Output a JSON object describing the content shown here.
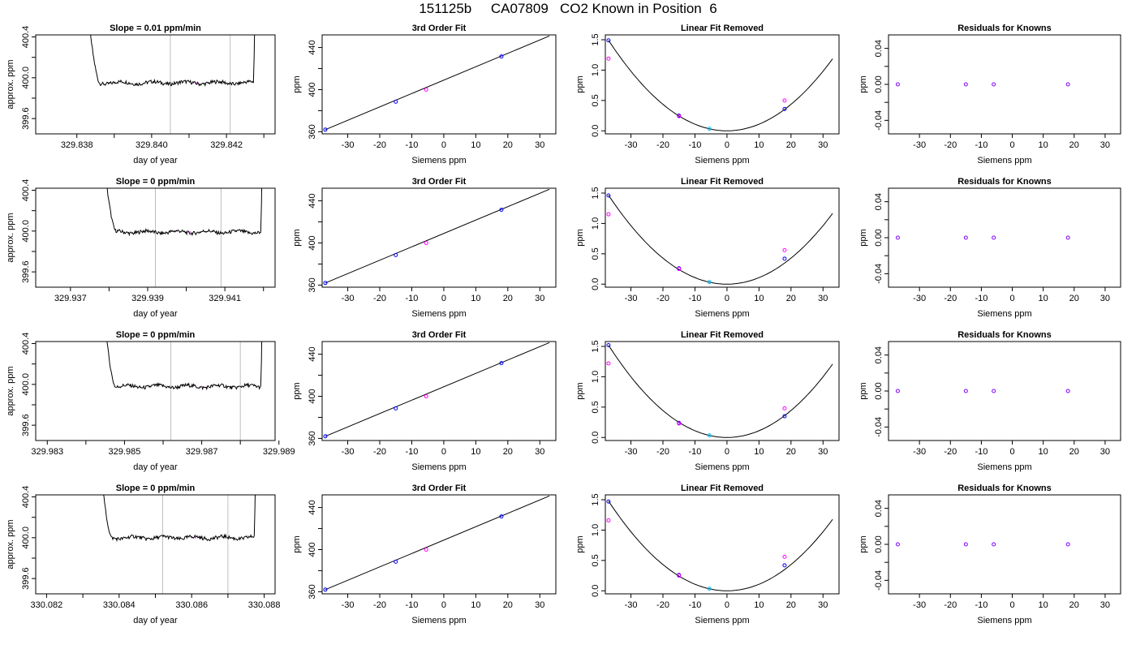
{
  "page_title": "151125b     CA07809   CO2 Known in Position  6",
  "colors": {
    "trace": "#000000",
    "reference_line": "#bebebe",
    "fit_line": "#000000",
    "known_point": "#0000ff",
    "alt_point": "#ff00ff",
    "highlight_point": "#00bfff",
    "residual_point": "#8000ff"
  },
  "chart_data": [
    {
      "type": "line",
      "title": "Slope =  0.01  ppm/min",
      "xlabel": "day of year",
      "ylabel": "approx. ppm",
      "xlim": [
        329.8369,
        329.8433
      ],
      "ylim": [
        399.45,
        400.42
      ],
      "xticks": [
        329.838,
        329.839,
        329.84,
        329.841,
        329.842,
        329.843
      ],
      "xtick_labels": [
        "329.838",
        "",
        "329.840",
        "",
        "329.842",
        ""
      ],
      "yticks": [
        399.6,
        399.8,
        400.0,
        400.2,
        400.4
      ],
      "ytick_labels": [
        "399.6",
        "",
        "400.0",
        "",
        "400.4"
      ],
      "vlines": [
        329.8405,
        329.8421
      ],
      "trace": {
        "x_start": 329.8381,
        "x_end": 329.8428,
        "baseline": 399.95,
        "pink_marker_x": 329.8412
      }
    },
    {
      "type": "scatter",
      "title": "3rd Order Fit",
      "xlabel": "Siemens ppm",
      "ylabel": "ppm",
      "xlim": [
        -38,
        35
      ],
      "ylim": [
        358,
        452
      ],
      "xticks": [
        -30,
        -20,
        -10,
        0,
        10,
        20,
        30
      ],
      "xtick_labels": [
        "-30",
        "-20",
        "-10",
        "0",
        "10",
        "20",
        "30"
      ],
      "yticks": [
        360,
        380,
        400,
        420,
        440
      ],
      "ytick_labels": [
        "360",
        "",
        "400",
        "",
        "440"
      ],
      "fit_line": {
        "x": [
          -37,
          33
        ],
        "y": [
          362,
          451
        ]
      },
      "points": [
        {
          "x": -37,
          "y": 362,
          "role": "known"
        },
        {
          "x": -15,
          "y": 388.5,
          "role": "known"
        },
        {
          "x": -5.5,
          "y": 400,
          "role": "alt"
        },
        {
          "x": 18,
          "y": 431.5,
          "role": "known"
        }
      ]
    },
    {
      "type": "scatter",
      "title": "Linear Fit Removed",
      "xlabel": "Siemens ppm",
      "ylabel": "ppm",
      "xlim": [
        -38,
        35
      ],
      "ylim": [
        -0.05,
        1.58
      ],
      "xticks": [
        -30,
        -20,
        -10,
        0,
        10,
        20,
        30
      ],
      "xtick_labels": [
        "-30",
        "-20",
        "-10",
        "0",
        "10",
        "20",
        "30"
      ],
      "yticks": [
        0,
        0.5,
        1.0,
        1.5
      ],
      "ytick_labels": [
        "0.0",
        "0.5",
        "1.0",
        "1.5"
      ],
      "curve": {
        "x_min": -37,
        "x_max": 33,
        "a": 0.00109
      },
      "points": [
        {
          "x": -37,
          "y": 1.49,
          "role": "known"
        },
        {
          "x": -37,
          "y": 1.19,
          "role": "alt"
        },
        {
          "x": -15,
          "y": 0.25,
          "role": "known"
        },
        {
          "x": -15,
          "y": 0.24,
          "role": "alt"
        },
        {
          "x": -5.5,
          "y": 0.035,
          "role": "highlight"
        },
        {
          "x": 18,
          "y": 0.36,
          "role": "known"
        },
        {
          "x": 18,
          "y": 0.5,
          "role": "alt"
        }
      ]
    },
    {
      "type": "scatter",
      "title": "Residuals for Knowns",
      "xlabel": "Siemens ppm",
      "ylabel": "ppm",
      "xlim": [
        -40,
        35
      ],
      "ylim": [
        -0.055,
        0.055
      ],
      "xticks": [
        -30,
        -20,
        -10,
        0,
        10,
        20,
        30
      ],
      "xtick_labels": [
        "-30",
        "-20",
        "-10",
        "0",
        "10",
        "20",
        "30"
      ],
      "yticks": [
        -0.04,
        -0.02,
        0,
        0.02,
        0.04
      ],
      "ytick_labels": [
        "-0.04",
        "",
        "0.00",
        "",
        "0.04"
      ],
      "points": [
        {
          "x": -37,
          "y": 0,
          "role": "residual"
        },
        {
          "x": -15,
          "y": 0,
          "role": "residual"
        },
        {
          "x": -6,
          "y": 0,
          "role": "residual"
        },
        {
          "x": 18,
          "y": 0,
          "role": "residual"
        }
      ]
    },
    {
      "type": "line",
      "title": "Slope =  0  ppm/min",
      "xlabel": "day of year",
      "ylabel": "approx. ppm",
      "xlim": [
        329.9361,
        329.9423
      ],
      "ylim": [
        399.45,
        400.42
      ],
      "xticks": [
        329.937,
        329.938,
        329.939,
        329.94,
        329.941,
        329.942
      ],
      "xtick_labels": [
        "329.937",
        "",
        "329.939",
        "",
        "329.941",
        ""
      ],
      "yticks": [
        399.6,
        399.8,
        400.0,
        400.2,
        400.4
      ],
      "ytick_labels": [
        "399.6",
        "",
        "400.0",
        "",
        "400.4"
      ],
      "vlines": [
        329.9392,
        329.9409
      ],
      "trace": {
        "x_start": 329.9377,
        "x_end": 329.942,
        "baseline": 399.99,
        "pink_marker_x": 329.9401
      }
    },
    {
      "type": "scatter",
      "title": "3rd Order Fit",
      "xlabel": "Siemens ppm",
      "ylabel": "ppm",
      "xlim": [
        -38,
        35
      ],
      "ylim": [
        358,
        452
      ],
      "xticks": [
        -30,
        -20,
        -10,
        0,
        10,
        20,
        30
      ],
      "xtick_labels": [
        "-30",
        "-20",
        "-10",
        "0",
        "10",
        "20",
        "30"
      ],
      "yticks": [
        360,
        380,
        400,
        420,
        440
      ],
      "ytick_labels": [
        "360",
        "",
        "400",
        "",
        "440"
      ],
      "fit_line": {
        "x": [
          -37,
          33
        ],
        "y": [
          362,
          451
        ]
      },
      "points": [
        {
          "x": -37,
          "y": 362,
          "role": "known"
        },
        {
          "x": -15,
          "y": 388.5,
          "role": "known"
        },
        {
          "x": -5.5,
          "y": 400,
          "role": "alt"
        },
        {
          "x": 18,
          "y": 431.5,
          "role": "known"
        }
      ]
    },
    {
      "type": "scatter",
      "title": "Linear Fit Removed",
      "xlabel": "Siemens ppm",
      "ylabel": "ppm",
      "xlim": [
        -38,
        35
      ],
      "ylim": [
        -0.05,
        1.58
      ],
      "xticks": [
        -30,
        -20,
        -10,
        0,
        10,
        20,
        30
      ],
      "xtick_labels": [
        "-30",
        "-20",
        "-10",
        "0",
        "10",
        "20",
        "30"
      ],
      "yticks": [
        0,
        0.5,
        1.0,
        1.5
      ],
      "ytick_labels": [
        "0.0",
        "0.5",
        "1.0",
        "1.5"
      ],
      "curve": {
        "x_min": -37,
        "x_max": 33,
        "a": 0.00107
      },
      "points": [
        {
          "x": -37,
          "y": 1.46,
          "role": "known"
        },
        {
          "x": -37,
          "y": 1.15,
          "role": "alt"
        },
        {
          "x": -15,
          "y": 0.26,
          "role": "known"
        },
        {
          "x": -15,
          "y": 0.25,
          "role": "alt"
        },
        {
          "x": -5.5,
          "y": 0.035,
          "role": "highlight"
        },
        {
          "x": 18,
          "y": 0.42,
          "role": "known"
        },
        {
          "x": 18,
          "y": 0.56,
          "role": "alt"
        }
      ]
    },
    {
      "type": "scatter",
      "title": "Residuals for Knowns",
      "xlabel": "Siemens ppm",
      "ylabel": "ppm",
      "xlim": [
        -40,
        35
      ],
      "ylim": [
        -0.055,
        0.055
      ],
      "xticks": [
        -30,
        -20,
        -10,
        0,
        10,
        20,
        30
      ],
      "xtick_labels": [
        "-30",
        "-20",
        "-10",
        "0",
        "10",
        "20",
        "30"
      ],
      "yticks": [
        -0.04,
        -0.02,
        0,
        0.02,
        0.04
      ],
      "ytick_labels": [
        "-0.04",
        "",
        "0.00",
        "",
        "0.04"
      ],
      "points": [
        {
          "x": -37,
          "y": 0,
          "role": "residual"
        },
        {
          "x": -15,
          "y": 0,
          "role": "residual"
        },
        {
          "x": -6,
          "y": 0,
          "role": "residual"
        },
        {
          "x": 18,
          "y": 0,
          "role": "residual"
        }
      ]
    },
    {
      "type": "line",
      "title": "Slope =  0  ppm/min",
      "xlabel": "day of year",
      "ylabel": "approx. ppm",
      "xlim": [
        329.9827,
        329.9889
      ],
      "ylim": [
        399.45,
        400.42
      ],
      "xticks": [
        329.983,
        329.984,
        329.985,
        329.986,
        329.987,
        329.988,
        329.989
      ],
      "xtick_labels": [
        "329.983",
        "",
        "329.985",
        "",
        "329.987",
        "",
        "329.989"
      ],
      "yticks": [
        399.6,
        399.8,
        400.0,
        400.2,
        400.4
      ],
      "ytick_labels": [
        "399.6",
        "",
        "400.0",
        "",
        "400.4"
      ],
      "vlines": [
        329.9862,
        329.988
      ],
      "trace": {
        "x_start": 329.9843,
        "x_end": 329.9886,
        "baseline": 399.98,
        "pink_marker_x": 329.987
      }
    },
    {
      "type": "scatter",
      "title": "3rd Order Fit",
      "xlabel": "Siemens ppm",
      "ylabel": "ppm",
      "xlim": [
        -38,
        35
      ],
      "ylim": [
        358,
        452
      ],
      "xticks": [
        -30,
        -20,
        -10,
        0,
        10,
        20,
        30
      ],
      "xtick_labels": [
        "-30",
        "-20",
        "-10",
        "0",
        "10",
        "20",
        "30"
      ],
      "yticks": [
        360,
        380,
        400,
        420,
        440
      ],
      "ytick_labels": [
        "360",
        "",
        "400",
        "",
        "440"
      ],
      "fit_line": {
        "x": [
          -37,
          33
        ],
        "y": [
          362,
          451
        ]
      },
      "points": [
        {
          "x": -37,
          "y": 362,
          "role": "known"
        },
        {
          "x": -15,
          "y": 388.5,
          "role": "known"
        },
        {
          "x": -5.5,
          "y": 400,
          "role": "alt"
        },
        {
          "x": 18,
          "y": 431.5,
          "role": "known"
        }
      ]
    },
    {
      "type": "scatter",
      "title": "Linear Fit Removed",
      "xlabel": "Siemens ppm",
      "ylabel": "ppm",
      "xlim": [
        -38,
        35
      ],
      "ylim": [
        -0.05,
        1.58
      ],
      "xticks": [
        -30,
        -20,
        -10,
        0,
        10,
        20,
        30
      ],
      "xtick_labels": [
        "-30",
        "-20",
        "-10",
        "0",
        "10",
        "20",
        "30"
      ],
      "yticks": [
        0,
        0.5,
        1.0,
        1.5
      ],
      "ytick_labels": [
        "0.0",
        "0.5",
        "1.0",
        "1.5"
      ],
      "curve": {
        "x_min": -37,
        "x_max": 33,
        "a": 0.00111
      },
      "points": [
        {
          "x": -37,
          "y": 1.52,
          "role": "known"
        },
        {
          "x": -37,
          "y": 1.22,
          "role": "alt"
        },
        {
          "x": -15,
          "y": 0.24,
          "role": "known"
        },
        {
          "x": -15,
          "y": 0.23,
          "role": "alt"
        },
        {
          "x": -5.5,
          "y": 0.035,
          "role": "highlight"
        },
        {
          "x": 18,
          "y": 0.35,
          "role": "known"
        },
        {
          "x": 18,
          "y": 0.48,
          "role": "alt"
        }
      ]
    },
    {
      "type": "scatter",
      "title": "Residuals for Knowns",
      "xlabel": "Siemens ppm",
      "ylabel": "ppm",
      "xlim": [
        -40,
        35
      ],
      "ylim": [
        -0.055,
        0.055
      ],
      "xticks": [
        -30,
        -20,
        -10,
        0,
        10,
        20,
        30
      ],
      "xtick_labels": [
        "-30",
        "-20",
        "-10",
        "0",
        "10",
        "20",
        "30"
      ],
      "yticks": [
        -0.04,
        -0.02,
        0,
        0.02,
        0.04
      ],
      "ytick_labels": [
        "-0.04",
        "",
        "0.00",
        "",
        "0.04"
      ],
      "points": [
        {
          "x": -37,
          "y": 0,
          "role": "residual"
        },
        {
          "x": -15,
          "y": 0,
          "role": "residual"
        },
        {
          "x": -6,
          "y": 0,
          "role": "residual"
        },
        {
          "x": 18,
          "y": 0,
          "role": "residual"
        }
      ]
    },
    {
      "type": "line",
      "title": "Slope =  0  ppm/min",
      "xlabel": "day of year",
      "ylabel": "approx. ppm",
      "xlim": [
        330.0817,
        330.0883
      ],
      "ylim": [
        399.45,
        400.42
      ],
      "xticks": [
        330.082,
        330.083,
        330.084,
        330.085,
        330.086,
        330.087,
        330.088
      ],
      "xtick_labels": [
        "330.082",
        "",
        "330.084",
        "",
        "330.086",
        "",
        "330.088"
      ],
      "yticks": [
        399.6,
        399.8,
        400.0,
        400.2,
        400.4
      ],
      "ytick_labels": [
        "399.6",
        "",
        "400.0",
        "",
        "400.4"
      ],
      "vlines": [
        330.0852,
        330.087
      ],
      "trace": {
        "x_start": 330.0833,
        "x_end": 330.0878,
        "baseline": 400.0,
        "pink_marker_x": 330.0861
      }
    },
    {
      "type": "scatter",
      "title": "3rd Order Fit",
      "xlabel": "Siemens ppm",
      "ylabel": "ppm",
      "xlim": [
        -38,
        35
      ],
      "ylim": [
        358,
        452
      ],
      "xticks": [
        -30,
        -20,
        -10,
        0,
        10,
        20,
        30
      ],
      "xtick_labels": [
        "-30",
        "-20",
        "-10",
        "0",
        "10",
        "20",
        "30"
      ],
      "yticks": [
        360,
        380,
        400,
        420,
        440
      ],
      "ytick_labels": [
        "360",
        "",
        "400",
        "",
        "440"
      ],
      "fit_line": {
        "x": [
          -37,
          33
        ],
        "y": [
          362,
          451
        ]
      },
      "points": [
        {
          "x": -37,
          "y": 362,
          "role": "known"
        },
        {
          "x": -15,
          "y": 388.5,
          "role": "known"
        },
        {
          "x": -5.5,
          "y": 400,
          "role": "alt"
        },
        {
          "x": 18,
          "y": 431.5,
          "role": "known"
        }
      ]
    },
    {
      "type": "scatter",
      "title": "Linear Fit Removed",
      "xlabel": "Siemens ppm",
      "ylabel": "ppm",
      "xlim": [
        -38,
        35
      ],
      "ylim": [
        -0.05,
        1.58
      ],
      "xticks": [
        -30,
        -20,
        -10,
        0,
        10,
        20,
        30
      ],
      "xtick_labels": [
        "-30",
        "-20",
        "-10",
        "0",
        "10",
        "20",
        "30"
      ],
      "yticks": [
        0,
        0.5,
        1.0,
        1.5
      ],
      "ytick_labels": [
        "0.0",
        "0.5",
        "1.0",
        "1.5"
      ],
      "curve": {
        "x_min": -37,
        "x_max": 33,
        "a": 0.00108
      },
      "points": [
        {
          "x": -37,
          "y": 1.47,
          "role": "known"
        },
        {
          "x": -37,
          "y": 1.16,
          "role": "alt"
        },
        {
          "x": -15,
          "y": 0.26,
          "role": "known"
        },
        {
          "x": -15,
          "y": 0.25,
          "role": "alt"
        },
        {
          "x": -5.5,
          "y": 0.035,
          "role": "highlight"
        },
        {
          "x": 18,
          "y": 0.42,
          "role": "known"
        },
        {
          "x": 18,
          "y": 0.56,
          "role": "alt"
        }
      ]
    },
    {
      "type": "scatter",
      "title": "Residuals for Knowns",
      "xlabel": "Siemens ppm",
      "ylabel": "ppm",
      "xlim": [
        -40,
        35
      ],
      "ylim": [
        -0.055,
        0.055
      ],
      "xticks": [
        -30,
        -20,
        -10,
        0,
        10,
        20,
        30
      ],
      "xtick_labels": [
        "-30",
        "-20",
        "-10",
        "0",
        "10",
        "20",
        "30"
      ],
      "yticks": [
        -0.04,
        -0.02,
        0,
        0.02,
        0.04
      ],
      "ytick_labels": [
        "-0.04",
        "",
        "0.00",
        "",
        "0.04"
      ],
      "points": [
        {
          "x": -37,
          "y": 0,
          "role": "residual"
        },
        {
          "x": -15,
          "y": 0,
          "role": "residual"
        },
        {
          "x": -6,
          "y": 0,
          "role": "residual"
        },
        {
          "x": 18,
          "y": 0,
          "role": "residual"
        }
      ]
    }
  ]
}
